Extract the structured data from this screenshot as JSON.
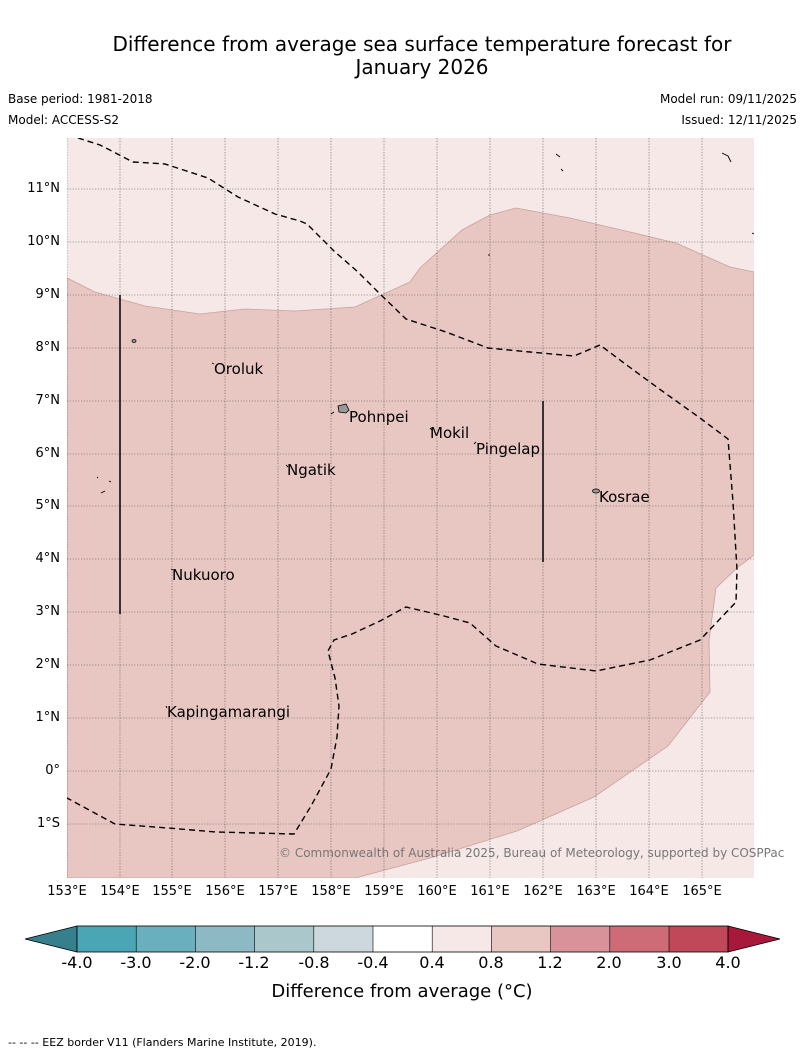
{
  "title_line1": "Difference from average sea surface temperature forecast for",
  "title_line2": "January 2026",
  "base_period": "Base period: 1981-2018",
  "model": "Model: ACCESS-S2",
  "model_run": "Model run: 09/11/2025",
  "issued": "Issued: 12/11/2025",
  "lat_labels": [
    "11°N",
    "10°N",
    "9°N",
    "8°N",
    "7°N",
    "6°N",
    "5°N",
    "4°N",
    "3°N",
    "2°N",
    "1°N",
    "0°",
    "1°S"
  ],
  "lon_labels": [
    "153°E",
    "154°E",
    "155°E",
    "156°E",
    "157°E",
    "158°E",
    "159°E",
    "160°E",
    "161°E",
    "162°E",
    "163°E",
    "164°E",
    "165°E"
  ],
  "places": {
    "oroluk": "Oroluk",
    "pohnpei": "Pohnpei",
    "mokil": "Mokil",
    "pingelap": "Pingelap",
    "ngatik": "Ngatik",
    "kosrae": "Kosrae",
    "nukuoro": "Nukuoro",
    "kapingamarangi": "Kapingamarangi"
  },
  "copyright": "© Commonwealth of Australia 2025, Bureau of Meteorology, supported by COSPPac",
  "colorbar": {
    "ticks": [
      "-4.0",
      "-3.0",
      "-2.0",
      "-1.2",
      "-0.8",
      "-0.4",
      "0.4",
      "0.8",
      "1.2",
      "2.0",
      "3.0",
      "4.0"
    ],
    "colors": [
      "#4aa5b4",
      "#6aafbe",
      "#8db9c4",
      "#aac8cc",
      "#cdd8de",
      "#ffffff",
      "#f5e8e7",
      "#e8c6c2",
      "#d8939a",
      "#cd6b76",
      "#c04858"
    ],
    "under_color": "#367f8c",
    "over_color": "#a8183a",
    "label": "Difference from average (°C)"
  },
  "footnote": "--  --  -- EEZ border V11 (Flanders Marine Institute, 2019)."
}
